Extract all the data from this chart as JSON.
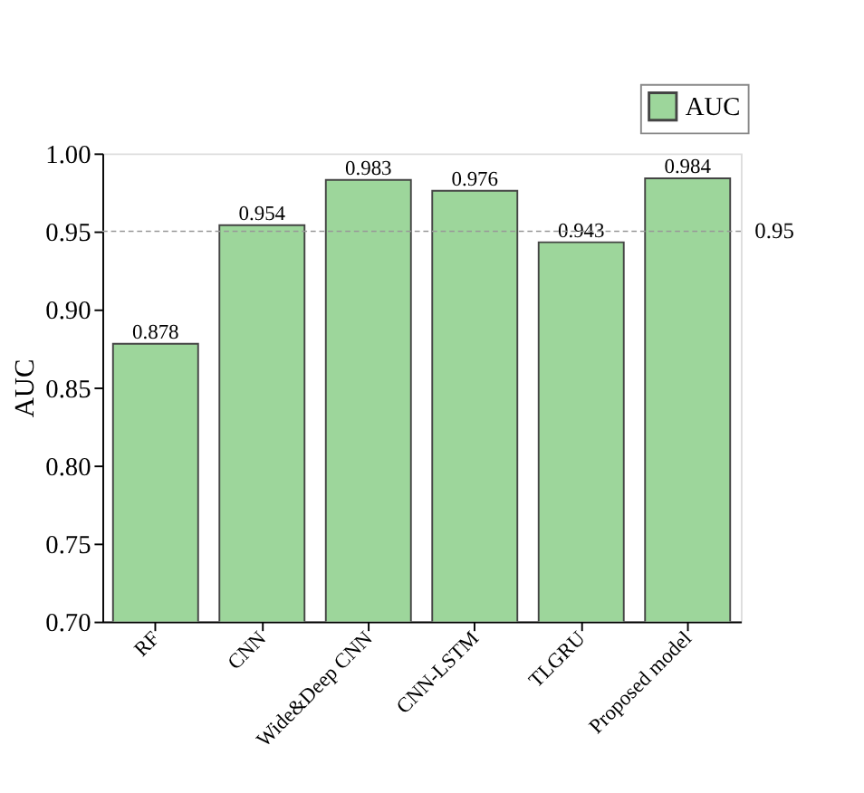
{
  "chart_data": {
    "type": "bar",
    "ylabel": "AUC",
    "categories": [
      "RF",
      "CNN",
      "Wide&Deep CNN",
      "CNN-LSTM",
      "TLGRU",
      "Proposed model"
    ],
    "series": [
      {
        "name": "AUC",
        "color": "#9dd69b",
        "values": [
          0.878,
          0.954,
          0.983,
          0.976,
          0.943,
          0.984
        ]
      }
    ],
    "ylim": [
      0.7,
      1.0
    ],
    "yticks": [
      {
        "value": 0.7,
        "label": "0.70"
      },
      {
        "value": 0.75,
        "label": "0.75"
      },
      {
        "value": 0.8,
        "label": "0.80"
      },
      {
        "value": 0.85,
        "label": "0.85"
      },
      {
        "value": 0.9,
        "label": "0.90"
      },
      {
        "value": 0.95,
        "label": "0.95"
      },
      {
        "value": 1.0,
        "label": "1.00"
      }
    ],
    "ref_lines": [
      {
        "axis": "y",
        "value": 0.95,
        "label": "0.95",
        "color": "#999999",
        "line_style": "dashed"
      }
    ],
    "data_labels": true,
    "legend": "top right",
    "grid": false
  }
}
